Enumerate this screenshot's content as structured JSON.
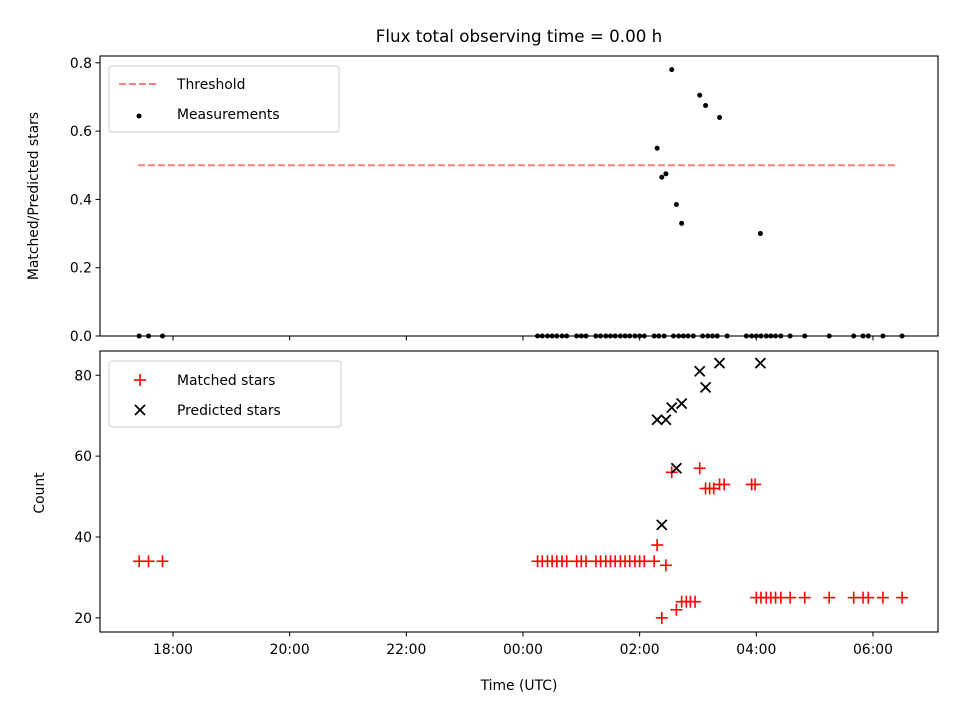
{
  "chart_data": [
    {
      "type": "scatter",
      "title": "Flux total observing time = 0.00 h",
      "ylabel": "Matched/Predicted stars",
      "xlabel": "",
      "ylim": [
        0,
        0.82
      ],
      "yticks": [
        0.0,
        0.2,
        0.4,
        0.6,
        0.8
      ],
      "ytick_labels": [
        "0.0",
        "0.2",
        "0.4",
        "0.6",
        "0.8"
      ],
      "xticks_hours": [
        18,
        20,
        22,
        24,
        26,
        28,
        30
      ],
      "legend_position": "top-left",
      "threshold": {
        "name": "Threshold",
        "value": 0.5,
        "x_range": [
          17.4,
          30.4
        ],
        "color": "#ff7f7f"
      },
      "series": [
        {
          "name": "Measurements",
          "marker": "dot",
          "color": "#000000",
          "x": [
            17.42,
            17.58,
            17.82,
            24.25,
            24.33,
            24.42,
            24.5,
            24.58,
            24.67,
            24.75,
            24.92,
            25.0,
            25.08,
            25.25,
            25.33,
            25.42,
            25.5,
            25.58,
            25.67,
            25.75,
            25.83,
            25.92,
            26.0,
            26.08,
            26.25,
            26.33,
            26.42,
            26.58,
            26.67,
            26.75,
            26.83,
            26.92,
            27.08,
            27.17,
            27.25,
            27.33,
            27.5,
            27.83,
            27.92,
            28.0,
            28.08,
            28.17,
            28.25,
            28.33,
            28.42,
            28.58,
            28.83,
            29.25,
            29.67,
            29.83,
            29.92,
            30.17,
            30.5,
            26.3,
            26.38,
            26.45,
            26.55,
            26.63,
            26.72,
            27.03,
            27.13,
            27.37,
            28.07
          ],
          "y": [
            0,
            0,
            0,
            0,
            0,
            0,
            0,
            0,
            0,
            0,
            0,
            0,
            0,
            0,
            0,
            0,
            0,
            0,
            0,
            0,
            0,
            0,
            0,
            0,
            0,
            0,
            0,
            0,
            0,
            0,
            0,
            0,
            0,
            0,
            0,
            0,
            0,
            0,
            0,
            0,
            0,
            0,
            0,
            0,
            0,
            0,
            0,
            0,
            0,
            0,
            0,
            0,
            0,
            0.55,
            0.465,
            0.475,
            0.78,
            0.385,
            0.33,
            0.705,
            0.675,
            0.64,
            0.3
          ]
        }
      ]
    },
    {
      "type": "scatter",
      "title": "",
      "ylabel": "Count",
      "xlabel": "Time (UTC)",
      "ylim": [
        16.5,
        86
      ],
      "yticks": [
        20,
        40,
        60,
        80
      ],
      "ytick_labels": [
        "20",
        "40",
        "60",
        "80"
      ],
      "xticks_hours": [
        18,
        20,
        22,
        24,
        26,
        28,
        30
      ],
      "xtick_labels": [
        "18:00",
        "20:00",
        "22:00",
        "00:00",
        "02:00",
        "04:00",
        "06:00"
      ],
      "legend_position": "top-left",
      "series": [
        {
          "name": "Matched stars",
          "marker": "plus",
          "color": "#ff0000",
          "x": [
            17.42,
            17.58,
            17.82,
            24.25,
            24.33,
            24.42,
            24.5,
            24.58,
            24.67,
            24.75,
            24.92,
            25.0,
            25.08,
            25.25,
            25.33,
            25.42,
            25.5,
            25.58,
            25.67,
            25.75,
            25.83,
            25.92,
            26.0,
            26.08,
            26.25,
            26.3,
            26.38,
            26.45,
            26.55,
            26.63,
            26.72,
            26.8,
            26.87,
            26.95,
            27.03,
            27.13,
            27.2,
            27.27,
            27.37,
            27.45,
            27.92,
            27.98,
            28.0,
            28.08,
            28.17,
            28.25,
            28.33,
            28.42,
            28.58,
            28.83,
            29.25,
            29.67,
            29.83,
            29.92,
            30.17,
            30.5
          ],
          "y": [
            34,
            34,
            34,
            34,
            34,
            34,
            34,
            34,
            34,
            34,
            34,
            34,
            34,
            34,
            34,
            34,
            34,
            34,
            34,
            34,
            34,
            34,
            34,
            34,
            34,
            38,
            20,
            33,
            56,
            22,
            24,
            24,
            24,
            24,
            57,
            52,
            52,
            52,
            53,
            53,
            53,
            53,
            25,
            25,
            25,
            25,
            25,
            25,
            25,
            25,
            25,
            25,
            25,
            25,
            25,
            25
          ]
        },
        {
          "name": "Predicted stars",
          "marker": "x",
          "color": "#000000",
          "x": [
            26.3,
            26.38,
            26.45,
            26.55,
            26.63,
            26.72,
            27.03,
            27.13,
            27.37,
            28.07
          ],
          "y": [
            69,
            43,
            69,
            72,
            57,
            73,
            81,
            77,
            83,
            83
          ]
        }
      ]
    }
  ]
}
